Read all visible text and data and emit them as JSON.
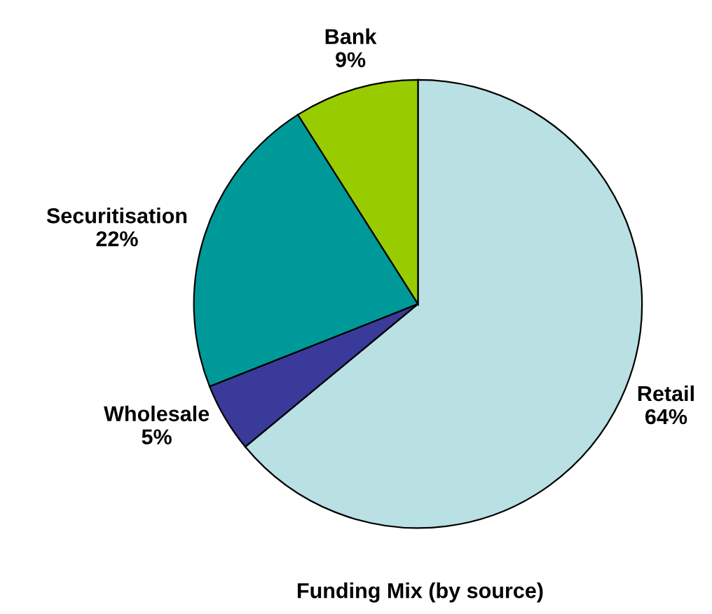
{
  "chart_data": {
    "type": "pie",
    "title": "Funding Mix (by source)",
    "categories": [
      "Retail",
      "Wholesale",
      "Securitisation",
      "Bank"
    ],
    "values": [
      64,
      5,
      22,
      9
    ],
    "value_labels": [
      "64%",
      "5%",
      "22%",
      "9%"
    ],
    "colors": [
      "#b9e0e3",
      "#3a3a9a",
      "#009999",
      "#99cc00"
    ],
    "legend": false
  }
}
